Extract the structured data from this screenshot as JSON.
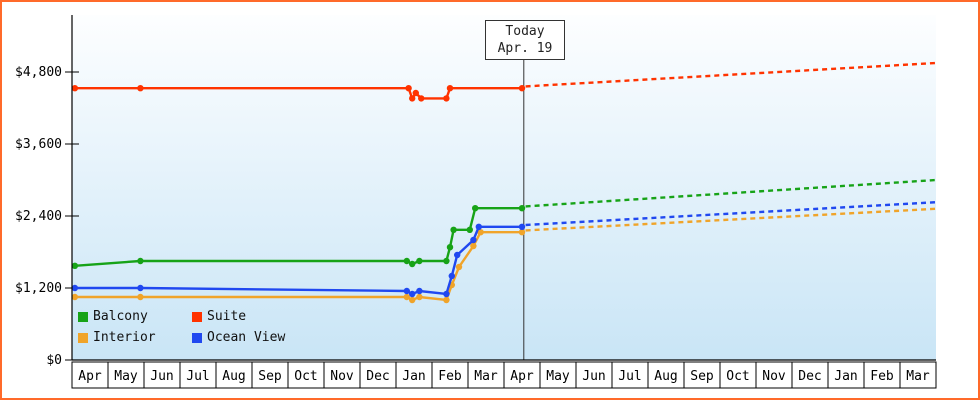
{
  "frame": {
    "border_color": "#ff6a2a",
    "plot_background_top": "#fdfeff",
    "plot_background_bottom": "#c9e5f6"
  },
  "chart_data": {
    "type": "line",
    "x_axis_unit": "month",
    "x_range_months": [
      0,
      24
    ],
    "x_labels": [
      "Apr",
      "May",
      "Jun",
      "Jul",
      "Aug",
      "Sep",
      "Oct",
      "Nov",
      "Dec",
      "Jan",
      "Feb",
      "Mar",
      "Apr",
      "May",
      "Jun",
      "Jul",
      "Aug",
      "Sep",
      "Oct",
      "Nov",
      "Dec",
      "Jan",
      "Feb",
      "Mar"
    ],
    "y_ticks": [
      0,
      1200,
      2400,
      3600,
      4800
    ],
    "y_tick_labels": [
      "$0",
      "$1,200",
      "$2,400",
      "$3,600",
      "$4,800"
    ],
    "y_plot_max": 5750,
    "grid": false,
    "style": {
      "history": "solid-with-markers",
      "forecast": "dashed"
    },
    "today": {
      "label": "Today",
      "date": "Apr. 19",
      "month_x": 12.55
    },
    "legend": {
      "position": "bottom-left-inside",
      "items": [
        {
          "label": "Balcony",
          "color": "#17a317"
        },
        {
          "label": "Suite",
          "color": "#ff3300"
        },
        {
          "label": "Interior",
          "color": "#f0a42a"
        },
        {
          "label": "Ocean View",
          "color": "#2048f0"
        }
      ]
    },
    "series": [
      {
        "name": "Interior",
        "color": "#f0a42a",
        "history": [
          [
            0.08,
            1050
          ],
          [
            1.9,
            1050
          ],
          [
            9.3,
            1050
          ],
          [
            9.45,
            1000
          ],
          [
            9.65,
            1050
          ],
          [
            10.4,
            1000
          ],
          [
            10.55,
            1250
          ],
          [
            10.75,
            1550
          ],
          [
            11.15,
            1900
          ],
          [
            11.35,
            2130
          ],
          [
            12.5,
            2130
          ]
        ],
        "forecast": [
          [
            12.6,
            2160
          ],
          [
            24,
            2520
          ]
        ]
      },
      {
        "name": "Ocean View",
        "color": "#2048f0",
        "history": [
          [
            0.08,
            1200
          ],
          [
            1.9,
            1200
          ],
          [
            9.3,
            1150
          ],
          [
            9.45,
            1100
          ],
          [
            9.65,
            1150
          ],
          [
            10.4,
            1100
          ],
          [
            10.55,
            1400
          ],
          [
            10.7,
            1750
          ],
          [
            11.15,
            2000
          ],
          [
            11.3,
            2220
          ],
          [
            12.5,
            2220
          ]
        ],
        "forecast": [
          [
            12.6,
            2250
          ],
          [
            24,
            2630
          ]
        ]
      },
      {
        "name": "Balcony",
        "color": "#17a317",
        "history": [
          [
            0.08,
            1570
          ],
          [
            1.9,
            1650
          ],
          [
            9.3,
            1650
          ],
          [
            9.45,
            1600
          ],
          [
            9.65,
            1650
          ],
          [
            10.4,
            1650
          ],
          [
            10.5,
            1880
          ],
          [
            10.6,
            2170
          ],
          [
            11.05,
            2170
          ],
          [
            11.2,
            2530
          ],
          [
            12.5,
            2530
          ]
        ],
        "forecast": [
          [
            12.6,
            2560
          ],
          [
            24,
            3000
          ]
        ]
      },
      {
        "name": "Suite",
        "color": "#ff3300",
        "history": [
          [
            0.08,
            4530
          ],
          [
            1.9,
            4530
          ],
          [
            9.35,
            4530
          ],
          [
            9.45,
            4360
          ],
          [
            9.55,
            4450
          ],
          [
            9.7,
            4360
          ],
          [
            10.4,
            4360
          ],
          [
            10.5,
            4530
          ],
          [
            12.5,
            4530
          ]
        ],
        "forecast": [
          [
            12.6,
            4560
          ],
          [
            24,
            4950
          ]
        ]
      }
    ]
  }
}
